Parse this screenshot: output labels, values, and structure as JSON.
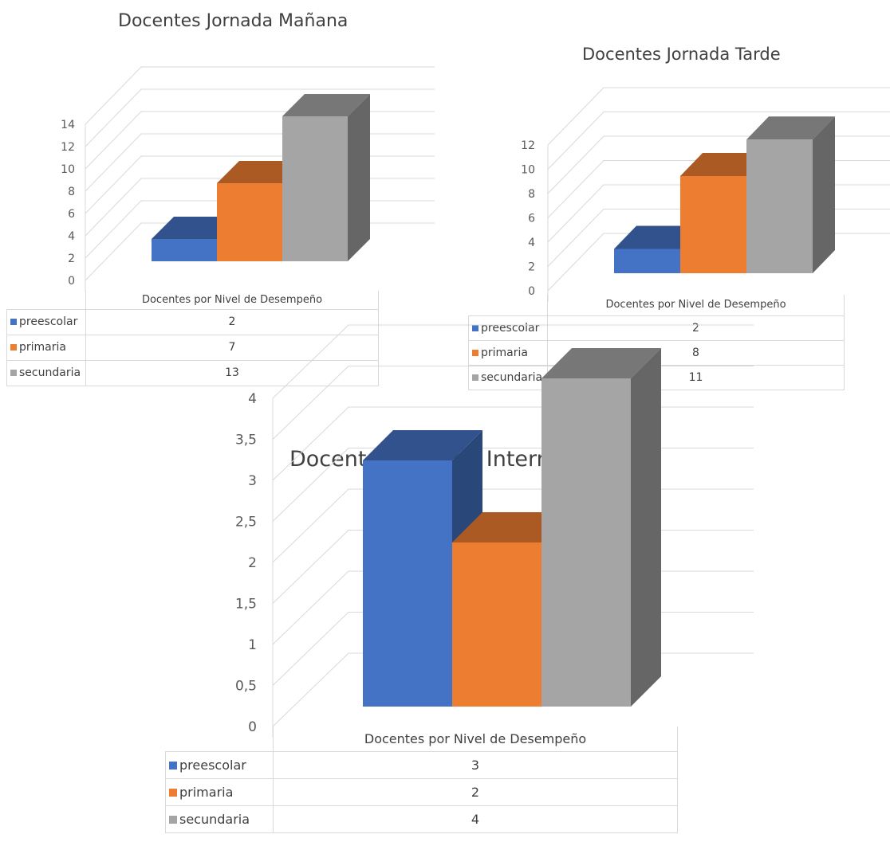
{
  "colors": {
    "preescolar": "#4472c4",
    "primaria": "#ed7d31",
    "secundaria": "#a5a5a5",
    "grid": "#d9d9d9"
  },
  "chart_data": [
    {
      "type": "bar",
      "title": "Docentes Jornada Mañana",
      "categories": [
        "Docentes por Nivel de Desempeño"
      ],
      "series": [
        {
          "name": "preescolar",
          "values": [
            2
          ]
        },
        {
          "name": "primaria",
          "values": [
            7
          ]
        },
        {
          "name": "secundaria",
          "values": [
            13
          ]
        }
      ],
      "ylim": [
        0,
        14
      ],
      "yticks": [
        "0",
        "2",
        "4",
        "6",
        "8",
        "10",
        "12",
        "14"
      ],
      "grid": true,
      "legend": "data-table"
    },
    {
      "type": "bar",
      "title": "Docentes Jornada Tarde",
      "categories": [
        "Docentes por Nivel de Desempeño"
      ],
      "series": [
        {
          "name": "preescolar",
          "values": [
            2
          ]
        },
        {
          "name": "primaria",
          "values": [
            8
          ]
        },
        {
          "name": "secundaria",
          "values": [
            11
          ]
        }
      ],
      "ylim": [
        0,
        12
      ],
      "yticks": [
        "0",
        "2",
        "4",
        "6",
        "8",
        "10",
        "12"
      ],
      "grid": true,
      "legend": "data-table"
    },
    {
      "type": "bar",
      "title": "Docentes Jornada Intermedia",
      "categories": [
        "Docentes por Nivel de Desempeño"
      ],
      "series": [
        {
          "name": "preescolar",
          "values": [
            3
          ]
        },
        {
          "name": "primaria",
          "values": [
            2
          ]
        },
        {
          "name": "secundaria",
          "values": [
            4
          ]
        }
      ],
      "ylim": [
        0,
        4
      ],
      "yticks": [
        "0",
        "0,5",
        "1",
        "1,5",
        "2",
        "2,5",
        "3",
        "3,5",
        "4"
      ],
      "grid": true,
      "legend": "data-table"
    }
  ]
}
